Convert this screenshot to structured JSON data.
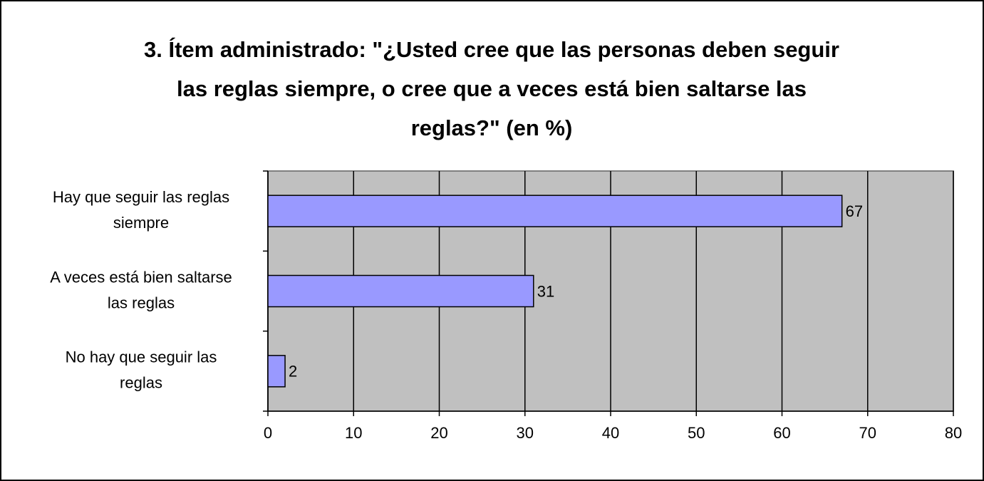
{
  "chart_data": {
    "type": "barh",
    "title": [
      "3. Ítem administrado: \"¿Usted cree que las personas deben seguir",
      "las reglas siempre, o cree que a veces está bien saltarse las",
      "reglas?\" (en %)"
    ],
    "categories": [
      [
        "Hay que seguir las reglas",
        "siempre"
      ],
      [
        "A veces está bien saltarse",
        "las reglas"
      ],
      [
        "No hay que seguir las",
        "reglas"
      ]
    ],
    "values": [
      67,
      31,
      2
    ],
    "color": "#9999ff",
    "xlim": [
      0,
      80
    ],
    "xticks": [
      0,
      10,
      20,
      30,
      40,
      50,
      60,
      70,
      80
    ],
    "grid": true
  }
}
